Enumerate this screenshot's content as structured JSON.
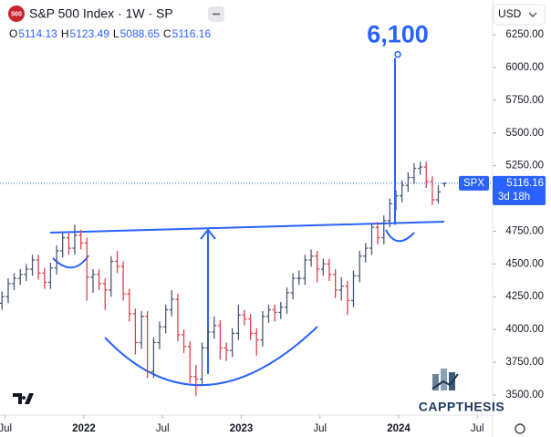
{
  "chart_data": {
    "type": "ohlc",
    "badge": "500",
    "title": "S&P 500 Index · 1W · SP",
    "ohlc_labels": [
      "O",
      "H",
      "L",
      "C"
    ],
    "currency": "USD",
    "series_name": "SPX",
    "countdown": "3d 18h",
    "watermark": "CAPPTHESIS",
    "up_color": "#4a5878",
    "down_color": "#e0404f",
    "accent_color": "#2962ff",
    "x": [
      2021.48,
      2021.519,
      2021.557,
      2021.596,
      2021.634,
      2021.673,
      2021.711,
      2021.75,
      2021.788,
      2021.827,
      2021.865,
      2021.904,
      2021.942,
      2021.981,
      2022.019,
      2022.058,
      2022.096,
      2022.135,
      2022.173,
      2022.212,
      2022.25,
      2022.289,
      2022.327,
      2022.366,
      2022.404,
      2022.443,
      2022.481,
      2022.52,
      2022.558,
      2022.597,
      2022.635,
      2022.674,
      2022.712,
      2022.751,
      2022.789,
      2022.828,
      2022.866,
      2022.905,
      2022.943,
      2022.982,
      2023.02,
      2023.059,
      2023.097,
      2023.136,
      2023.174,
      2023.213,
      2023.251,
      2023.29,
      2023.328,
      2023.367,
      2023.405,
      2023.444,
      2023.482,
      2023.521,
      2023.559,
      2023.598,
      2023.636,
      2023.675,
      2023.713,
      2023.752,
      2023.79,
      2023.829,
      2023.867,
      2023.906,
      2023.944,
      2023.983,
      2024.021,
      2024.06,
      2024.098,
      2024.137,
      2024.175,
      2024.214,
      2024.252,
      2024.291
    ],
    "open": [
      4200,
      4250,
      4350,
      4390,
      4420,
      4460,
      4530,
      4430,
      4360,
      4470,
      4600,
      4700,
      4620,
      4720,
      4660,
      4400,
      4420,
      4350,
      4300,
      4520,
      4480,
      4270,
      4120,
      3900,
      4100,
      3680,
      3900,
      4020,
      4150,
      4230,
      3960,
      3870,
      3640,
      3620,
      3860,
      3980,
      4030,
      3860,
      3840,
      3970,
      4110,
      4080,
      3970,
      3920,
      4100,
      4150,
      4130,
      4170,
      4280,
      4390,
      4390,
      4530,
      4560,
      4460,
      4500,
      4420,
      4300,
      4330,
      4220,
      4410,
      4560,
      4620,
      4780,
      4700,
      4830,
      4960,
      5020,
      5100,
      5160,
      5230,
      5240,
      5130,
      4990,
      5114.13
    ],
    "high": [
      4290,
      4390,
      4430,
      4460,
      4500,
      4570,
      4570,
      4470,
      4510,
      4640,
      4740,
      4740,
      4800,
      4760,
      4700,
      4460,
      4460,
      4390,
      4560,
      4600,
      4520,
      4310,
      4160,
      4140,
      4140,
      3940,
      4060,
      4190,
      4300,
      4270,
      4000,
      3910,
      3730,
      3900,
      4020,
      4100,
      4070,
      3900,
      4010,
      4190,
      4150,
      4120,
      4010,
      4140,
      4190,
      4190,
      4210,
      4320,
      4430,
      4450,
      4570,
      4610,
      4600,
      4540,
      4540,
      4460,
      4400,
      4370,
      4450,
      4600,
      4660,
      4810,
      4820,
      4870,
      5000,
      5060,
      5140,
      5200,
      5270,
      5280,
      5280,
      5170,
      5100,
      5123.49
    ],
    "low": [
      4150,
      4200,
      4300,
      4340,
      4370,
      4410,
      4380,
      4310,
      4310,
      4420,
      4550,
      4570,
      4570,
      4610,
      4220,
      4280,
      4300,
      4150,
      4250,
      4430,
      4220,
      4060,
      3810,
      3850,
      3630,
      3630,
      3850,
      3970,
      4100,
      3910,
      3820,
      3590,
      3490,
      3570,
      3810,
      3930,
      3770,
      3760,
      3790,
      3920,
      4030,
      3920,
      3800,
      3870,
      4050,
      4060,
      4080,
      4120,
      4230,
      4340,
      4340,
      4480,
      4360,
      4410,
      4370,
      4240,
      4220,
      4110,
      4170,
      4360,
      4510,
      4570,
      4650,
      4650,
      4780,
      4910,
      4970,
      5050,
      5110,
      5180,
      5080,
      4950,
      4960,
      5088.65
    ],
    "close": [
      4250,
      4350,
      4390,
      4420,
      4460,
      4530,
      4430,
      4360,
      4470,
      4600,
      4700,
      4620,
      4720,
      4660,
      4400,
      4420,
      4350,
      4300,
      4520,
      4480,
      4270,
      4120,
      3900,
      4100,
      3680,
      3900,
      4020,
      4150,
      4230,
      3960,
      3870,
      3640,
      3620,
      3860,
      3980,
      4030,
      3860,
      3840,
      3970,
      4110,
      4080,
      3970,
      3920,
      4100,
      4150,
      4130,
      4170,
      4280,
      4390,
      4390,
      4530,
      4560,
      4460,
      4500,
      4420,
      4300,
      4330,
      4220,
      4410,
      4560,
      4620,
      4780,
      4700,
      4830,
      4960,
      5020,
      5100,
      5160,
      5230,
      5240,
      5130,
      4990,
      5050,
      5116.16
    ],
    "xlim": [
      2021.467,
      2024.597
    ],
    "xticks": [
      {
        "value": 2021.5,
        "label": "Jul"
      },
      2022,
      {
        "value": 2022.5,
        "label": "Jul"
      },
      2023,
      {
        "value": 2023.5,
        "label": "Jul"
      },
      2024,
      {
        "value": 2024.5,
        "label": "Jul"
      }
    ],
    "ylim": [
      3346,
      6515
    ],
    "yticks": [
      {
        "value": 3500,
        "label": "3500.00"
      },
      {
        "value": 3750,
        "label": "3750.00"
      },
      {
        "value": 4000,
        "label": "4000.00"
      },
      {
        "value": 4250,
        "label": "4250.00"
      },
      {
        "value": 4500,
        "label": "4500.00"
      },
      {
        "value": 4750,
        "label": "4750.00"
      },
      {
        "value": 5000,
        "label": "5000.00"
      },
      {
        "value": 5250,
        "label": "5250.00"
      },
      {
        "value": 5500,
        "label": "5500.00"
      },
      {
        "value": 5750,
        "label": "5750.00"
      },
      {
        "value": 6000,
        "label": "6000.00"
      },
      {
        "value": 6250,
        "label": "6250.00"
      }
    ],
    "target": {
      "value": 6100,
      "label": "6,100"
    }
  }
}
